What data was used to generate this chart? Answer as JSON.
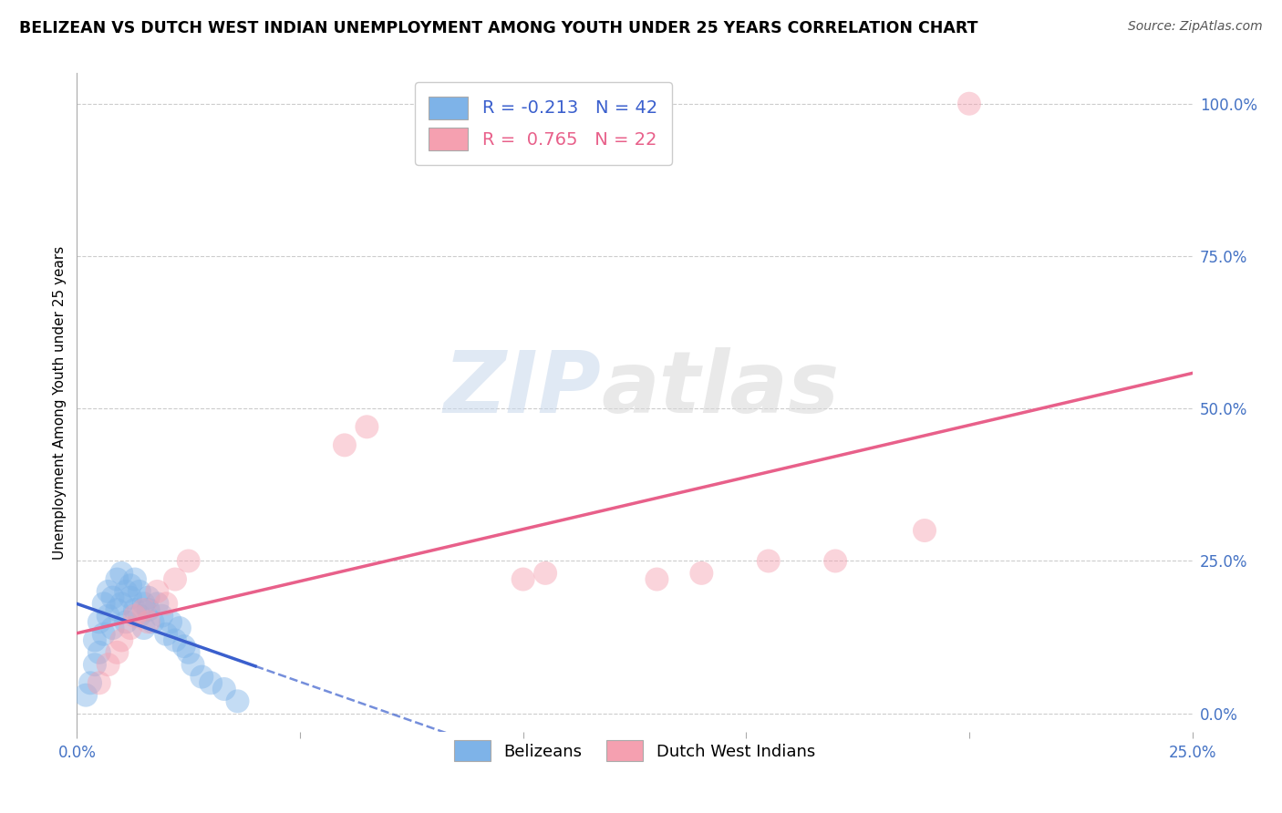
{
  "title": "BELIZEAN VS DUTCH WEST INDIAN UNEMPLOYMENT AMONG YOUTH UNDER 25 YEARS CORRELATION CHART",
  "source": "Source: ZipAtlas.com",
  "ylabel": "Unemployment Among Youth under 25 years",
  "xlim": [
    0.0,
    0.25
  ],
  "ylim": [
    -0.03,
    1.05
  ],
  "xticks": [
    0.0,
    0.05,
    0.1,
    0.15,
    0.2,
    0.25
  ],
  "yticks": [
    0.0,
    0.25,
    0.5,
    0.75,
    1.0
  ],
  "ytick_labels": [
    "0.0%",
    "25.0%",
    "50.0%",
    "75.0%",
    "100.0%"
  ],
  "xtick_labels": [
    "0.0%",
    "",
    "",
    "",
    "",
    "25.0%"
  ],
  "belizean_R": -0.213,
  "belizean_N": 42,
  "dutch_R": 0.765,
  "dutch_N": 22,
  "belizean_color": "#7EB3E8",
  "dutch_color": "#F5A0B0",
  "belizean_line_color": "#3A5FCD",
  "dutch_line_color": "#E8608A",
  "background_color": "#FFFFFF",
  "grid_color": "#CCCCCC",
  "belizean_x": [
    0.002,
    0.003,
    0.004,
    0.004,
    0.005,
    0.005,
    0.006,
    0.006,
    0.007,
    0.007,
    0.008,
    0.008,
    0.009,
    0.009,
    0.01,
    0.01,
    0.011,
    0.011,
    0.012,
    0.012,
    0.013,
    0.013,
    0.014,
    0.014,
    0.015,
    0.015,
    0.016,
    0.016,
    0.017,
    0.018,
    0.019,
    0.02,
    0.021,
    0.022,
    0.023,
    0.024,
    0.025,
    0.026,
    0.028,
    0.03,
    0.033,
    0.036
  ],
  "belizean_y": [
    0.03,
    0.05,
    0.08,
    0.12,
    0.1,
    0.15,
    0.13,
    0.18,
    0.16,
    0.2,
    0.14,
    0.19,
    0.17,
    0.22,
    0.18,
    0.23,
    0.2,
    0.15,
    0.19,
    0.21,
    0.17,
    0.22,
    0.16,
    0.2,
    0.18,
    0.14,
    0.17,
    0.19,
    0.15,
    0.18,
    0.16,
    0.13,
    0.15,
    0.12,
    0.14,
    0.11,
    0.1,
    0.08,
    0.06,
    0.05,
    0.04,
    0.02
  ],
  "dutch_x": [
    0.005,
    0.007,
    0.009,
    0.01,
    0.012,
    0.013,
    0.015,
    0.016,
    0.018,
    0.02,
    0.022,
    0.025,
    0.06,
    0.065,
    0.1,
    0.105,
    0.13,
    0.14,
    0.155,
    0.17,
    0.19,
    0.2
  ],
  "dutch_y": [
    0.05,
    0.08,
    0.1,
    0.12,
    0.14,
    0.16,
    0.17,
    0.15,
    0.2,
    0.18,
    0.22,
    0.25,
    0.44,
    0.47,
    0.22,
    0.23,
    0.22,
    0.23,
    0.25,
    0.25,
    0.3,
    1.0
  ]
}
